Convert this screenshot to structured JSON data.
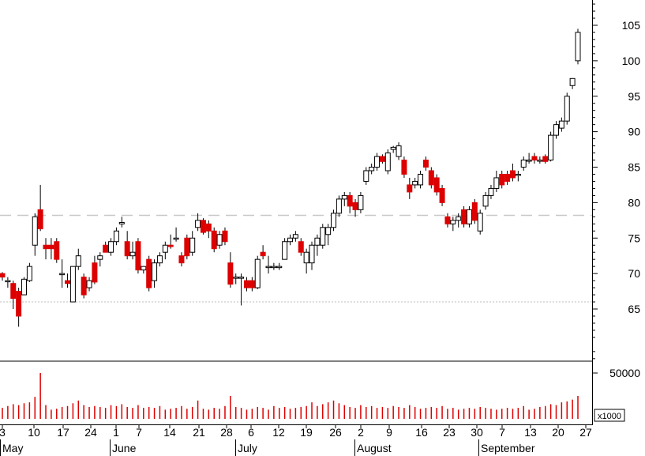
{
  "chart_data": {
    "type": "candlestick",
    "price_ylim": [
      56,
      110
    ],
    "y_ticks": [
      65,
      70,
      75,
      80,
      85,
      90,
      95,
      100,
      105
    ],
    "volume_ticks": [
      50000
    ],
    "volume_ylim": [
      0,
      56000
    ],
    "volume_unit_label": "x1000",
    "resistance_level": 78.2,
    "support_level": 66.0,
    "day_labels": [
      "3",
      "10",
      "17",
      "24",
      "1",
      "7",
      "14",
      "21",
      "28",
      "6",
      "12",
      "19",
      "26",
      "2",
      "9",
      "16",
      "23",
      "30",
      "7",
      "13",
      "20",
      "27"
    ],
    "month_labels": [
      "May",
      "June",
      "July",
      "August",
      "September"
    ],
    "up_color": "#ffffff",
    "down_color": "#dd0000",
    "volume_color": "#dd0000",
    "series": [
      {
        "date": "May 1",
        "open": 70.0,
        "high": 70.2,
        "low": 69.0,
        "close": 69.5
      },
      {
        "date": "May 2",
        "open": 69.0,
        "high": 69.5,
        "low": 68.0,
        "close": 69.0
      },
      {
        "date": "May 3",
        "open": 68.6,
        "high": 69.0,
        "low": 65.0,
        "close": 66.5
      },
      {
        "date": "May 4",
        "open": 67.5,
        "high": 68.0,
        "low": 62.5,
        "close": 64.0
      },
      {
        "date": "May 5",
        "open": 67.0,
        "high": 69.5,
        "low": 67.0,
        "close": 69.2
      },
      {
        "date": "May 8",
        "open": 69.0,
        "high": 71.5,
        "low": 68.8,
        "close": 71.0
      },
      {
        "date": "May 9",
        "open": 74.0,
        "high": 78.5,
        "low": 72.5,
        "close": 78.0
      },
      {
        "date": "May 10",
        "open": 79.0,
        "high": 82.5,
        "low": 76.0,
        "close": 76.3
      },
      {
        "date": "May 11",
        "open": 74.0,
        "high": 75.0,
        "low": 72.0,
        "close": 73.5
      },
      {
        "date": "May 12",
        "open": 74.0,
        "high": 75.0,
        "low": 72.0,
        "close": 73.5
      },
      {
        "date": "May 15",
        "open": 74.5,
        "high": 75.0,
        "low": 71.5,
        "close": 72.0
      },
      {
        "date": "May 16",
        "open": 70.0,
        "high": 72.0,
        "low": 68.0,
        "close": 70.0
      },
      {
        "date": "May 17",
        "open": 69.0,
        "high": 70.0,
        "low": 68.0,
        "close": 68.6
      },
      {
        "date": "May 18",
        "open": 66.0,
        "high": 71.0,
        "low": 66.0,
        "close": 71.0
      },
      {
        "date": "May 19",
        "open": 71.0,
        "high": 73.5,
        "low": 70.5,
        "close": 72.5
      },
      {
        "date": "May 22",
        "open": 69.5,
        "high": 70.0,
        "low": 66.5,
        "close": 67.0
      },
      {
        "date": "May 23",
        "open": 68.0,
        "high": 69.5,
        "low": 67.5,
        "close": 69.0
      },
      {
        "date": "May 24",
        "open": 71.5,
        "high": 72.5,
        "low": 68.5,
        "close": 68.8
      },
      {
        "date": "May 25",
        "open": 72.0,
        "high": 73.0,
        "low": 71.0,
        "close": 72.5
      },
      {
        "date": "May 26",
        "open": 74.0,
        "high": 74.5,
        "low": 73.0,
        "close": 73.0
      },
      {
        "date": "May 29",
        "open": 73.0,
        "high": 75.0,
        "low": 72.5,
        "close": 74.5
      },
      {
        "date": "May 30",
        "open": 74.5,
        "high": 76.5,
        "low": 74.0,
        "close": 76.0
      },
      {
        "date": "May 31",
        "open": 77.0,
        "high": 78.0,
        "low": 76.5,
        "close": 77.2
      },
      {
        "date": "Jun 1",
        "open": 74.5,
        "high": 76.0,
        "low": 72.0,
        "close": 72.5
      },
      {
        "date": "Jun 2",
        "open": 72.5,
        "high": 74.5,
        "low": 72.0,
        "close": 73.0
      },
      {
        "date": "Jun 5",
        "open": 74.5,
        "high": 75.0,
        "low": 70.0,
        "close": 70.5
      },
      {
        "date": "Jun 6",
        "open": 70.5,
        "high": 71.0,
        "low": 70.0,
        "close": 71.0
      },
      {
        "date": "Jun 7",
        "open": 72.0,
        "high": 72.5,
        "low": 67.5,
        "close": 68.0
      },
      {
        "date": "Jun 8",
        "open": 69.0,
        "high": 72.0,
        "low": 68.0,
        "close": 71.5
      },
      {
        "date": "Jun 9",
        "open": 71.5,
        "high": 73.0,
        "low": 71.0,
        "close": 72.5
      },
      {
        "date": "Jun 12",
        "open": 73.0,
        "high": 74.5,
        "low": 72.0,
        "close": 74.0
      },
      {
        "date": "Jun 13",
        "open": 74.0,
        "high": 75.5,
        "low": 73.5,
        "close": 73.8
      },
      {
        "date": "Jun 14",
        "open": 75.0,
        "high": 76.5,
        "low": 74.5,
        "close": 75.0
      },
      {
        "date": "Jun 15",
        "open": 72.5,
        "high": 73.0,
        "low": 71.0,
        "close": 71.5
      },
      {
        "date": "Jun 16",
        "open": 75.0,
        "high": 75.5,
        "low": 72.0,
        "close": 72.5
      },
      {
        "date": "Jun 19",
        "open": 73.0,
        "high": 76.0,
        "low": 72.5,
        "close": 75.0
      },
      {
        "date": "Jun 20",
        "open": 76.5,
        "high": 78.5,
        "low": 76.0,
        "close": 77.5
      },
      {
        "date": "Jun 21",
        "open": 77.5,
        "high": 77.8,
        "low": 75.5,
        "close": 75.8
      },
      {
        "date": "Jun 22",
        "open": 77.0,
        "high": 77.5,
        "low": 75.0,
        "close": 76.0
      },
      {
        "date": "Jun 23",
        "open": 76.0,
        "high": 76.5,
        "low": 73.0,
        "close": 73.5
      },
      {
        "date": "Jun 26",
        "open": 74.0,
        "high": 76.0,
        "low": 73.5,
        "close": 75.5
      },
      {
        "date": "Jun 27",
        "open": 76.0,
        "high": 76.5,
        "low": 74.0,
        "close": 74.5
      },
      {
        "date": "Jun 28",
        "open": 71.5,
        "high": 73.0,
        "low": 68.0,
        "close": 68.5
      },
      {
        "date": "Jun 29",
        "open": 69.5,
        "high": 70.0,
        "low": 68.5,
        "close": 69.5
      },
      {
        "date": "Jun 30",
        "open": 69.5,
        "high": 70.0,
        "low": 65.5,
        "close": 69.5
      },
      {
        "date": "Jul 3",
        "open": 69.0,
        "high": 69.5,
        "low": 67.5,
        "close": 68.0
      },
      {
        "date": "Jul 5",
        "open": 69.0,
        "high": 69.5,
        "low": 67.5,
        "close": 68.0
      },
      {
        "date": "Jul 6",
        "open": 68.0,
        "high": 72.5,
        "low": 67.8,
        "close": 72.0
      },
      {
        "date": "Jul 7",
        "open": 73.0,
        "high": 74.0,
        "low": 72.0,
        "close": 72.5
      },
      {
        "date": "Jul 10",
        "open": 71.0,
        "high": 72.5,
        "low": 70.0,
        "close": 71.0
      },
      {
        "date": "Jul 11",
        "open": 71.0,
        "high": 71.5,
        "low": 70.5,
        "close": 71.0
      },
      {
        "date": "Jul 12",
        "open": 71.0,
        "high": 71.5,
        "low": 70.5,
        "close": 71.0
      },
      {
        "date": "Jul 13",
        "open": 72.0,
        "high": 75.0,
        "low": 72.0,
        "close": 74.5
      },
      {
        "date": "Jul 14",
        "open": 74.5,
        "high": 75.5,
        "low": 74.0,
        "close": 75.0
      },
      {
        "date": "Jul 17",
        "open": 75.0,
        "high": 76.0,
        "low": 74.5,
        "close": 75.5
      },
      {
        "date": "Jul 18",
        "open": 74.5,
        "high": 75.0,
        "low": 72.5,
        "close": 73.0
      },
      {
        "date": "Jul 19",
        "open": 71.5,
        "high": 73.5,
        "low": 70.0,
        "close": 73.0
      },
      {
        "date": "Jul 20",
        "open": 71.5,
        "high": 74.5,
        "low": 70.5,
        "close": 74.0
      },
      {
        "date": "Jul 21",
        "open": 74.0,
        "high": 75.5,
        "low": 72.5,
        "close": 75.0
      },
      {
        "date": "Jul 24",
        "open": 74.0,
        "high": 77.0,
        "low": 73.5,
        "close": 76.5
      },
      {
        "date": "Jul 25",
        "open": 75.5,
        "high": 77.0,
        "low": 74.0,
        "close": 76.5
      },
      {
        "date": "Jul 26",
        "open": 76.5,
        "high": 79.0,
        "low": 76.0,
        "close": 78.5
      },
      {
        "date": "Jul 27",
        "open": 78.5,
        "high": 81.0,
        "low": 78.0,
        "close": 80.5
      },
      {
        "date": "Jul 28",
        "open": 80.5,
        "high": 81.5,
        "low": 79.5,
        "close": 81.0
      },
      {
        "date": "Jul 31",
        "open": 81.0,
        "high": 81.5,
        "low": 78.5,
        "close": 79.5
      },
      {
        "date": "Aug 1",
        "open": 80.0,
        "high": 80.5,
        "low": 78.0,
        "close": 79.0
      },
      {
        "date": "Aug 2",
        "open": 79.0,
        "high": 81.5,
        "low": 78.5,
        "close": 81.0
      },
      {
        "date": "Aug 3",
        "open": 83.0,
        "high": 85.0,
        "low": 82.5,
        "close": 84.5
      },
      {
        "date": "Aug 4",
        "open": 84.5,
        "high": 85.5,
        "low": 84.0,
        "close": 85.0
      },
      {
        "date": "Aug 7",
        "open": 85.0,
        "high": 87.0,
        "low": 84.5,
        "close": 86.5
      },
      {
        "date": "Aug 8",
        "open": 86.5,
        "high": 86.8,
        "low": 85.5,
        "close": 85.8
      },
      {
        "date": "Aug 9",
        "open": 84.5,
        "high": 87.5,
        "low": 84.0,
        "close": 87.0
      },
      {
        "date": "Aug 10",
        "open": 87.5,
        "high": 88.0,
        "low": 87.0,
        "close": 87.8
      },
      {
        "date": "Aug 11",
        "open": 86.5,
        "high": 88.5,
        "low": 86.0,
        "close": 88.0
      },
      {
        "date": "Aug 14",
        "open": 86.0,
        "high": 86.5,
        "low": 83.5,
        "close": 84.0
      },
      {
        "date": "Aug 15",
        "open": 82.5,
        "high": 83.5,
        "low": 80.5,
        "close": 81.5
      },
      {
        "date": "Aug 16",
        "open": 82.5,
        "high": 83.5,
        "low": 82.0,
        "close": 83.0
      },
      {
        "date": "Aug 17",
        "open": 82.5,
        "high": 84.5,
        "low": 82.0,
        "close": 84.0
      },
      {
        "date": "Aug 18",
        "open": 86.0,
        "high": 86.5,
        "low": 84.5,
        "close": 85.0
      },
      {
        "date": "Aug 21",
        "open": 84.5,
        "high": 85.0,
        "low": 82.0,
        "close": 82.5
      },
      {
        "date": "Aug 22",
        "open": 83.5,
        "high": 84.0,
        "low": 81.0,
        "close": 81.5
      },
      {
        "date": "Aug 23",
        "open": 82.0,
        "high": 82.5,
        "low": 79.5,
        "close": 80.0
      },
      {
        "date": "Aug 24",
        "open": 78.0,
        "high": 78.5,
        "low": 76.5,
        "close": 77.0
      },
      {
        "date": "Aug 25",
        "open": 77.0,
        "high": 78.0,
        "low": 76.0,
        "close": 77.5
      },
      {
        "date": "Aug 28",
        "open": 77.5,
        "high": 78.5,
        "low": 76.5,
        "close": 78.0
      },
      {
        "date": "Aug 29",
        "open": 79.0,
        "high": 79.5,
        "low": 76.5,
        "close": 77.0
      },
      {
        "date": "Aug 30",
        "open": 77.0,
        "high": 79.5,
        "low": 76.5,
        "close": 79.0
      },
      {
        "date": "Aug 31",
        "open": 80.0,
        "high": 80.5,
        "low": 77.0,
        "close": 77.5
      },
      {
        "date": "Sep 1",
        "open": 76.0,
        "high": 79.0,
        "low": 75.5,
        "close": 78.5
      },
      {
        "date": "Sep 5",
        "open": 79.5,
        "high": 81.5,
        "low": 79.0,
        "close": 81.0
      },
      {
        "date": "Sep 6",
        "open": 81.0,
        "high": 82.5,
        "low": 80.5,
        "close": 82.0
      },
      {
        "date": "Sep 7",
        "open": 82.0,
        "high": 84.5,
        "low": 81.5,
        "close": 83.5
      },
      {
        "date": "Sep 8",
        "open": 84.0,
        "high": 84.5,
        "low": 82.0,
        "close": 82.5
      },
      {
        "date": "Sep 11",
        "open": 84.0,
        "high": 84.5,
        "low": 82.5,
        "close": 83.0
      },
      {
        "date": "Sep 12",
        "open": 84.5,
        "high": 85.5,
        "low": 83.0,
        "close": 83.5
      },
      {
        "date": "Sep 13",
        "open": 84.0,
        "high": 84.5,
        "low": 83.0,
        "close": 84.0
      },
      {
        "date": "Sep 14",
        "open": 85.0,
        "high": 86.5,
        "low": 84.5,
        "close": 86.0
      },
      {
        "date": "Sep 15",
        "open": 86.0,
        "high": 87.0,
        "low": 85.5,
        "close": 86.0
      },
      {
        "date": "Sep 18",
        "open": 86.5,
        "high": 87.0,
        "low": 85.5,
        "close": 86.0
      },
      {
        "date": "Sep 19",
        "open": 86.0,
        "high": 86.5,
        "low": 85.5,
        "close": 86.0
      },
      {
        "date": "Sep 20",
        "open": 86.5,
        "high": 86.8,
        "low": 85.5,
        "close": 85.8
      },
      {
        "date": "Sep 21",
        "open": 86.0,
        "high": 90.0,
        "low": 85.8,
        "close": 89.5
      },
      {
        "date": "Sep 22",
        "open": 89.5,
        "high": 91.5,
        "low": 89.0,
        "close": 91.0
      },
      {
        "date": "Sep 25",
        "open": 90.5,
        "high": 92.0,
        "low": 90.0,
        "close": 91.5
      },
      {
        "date": "Sep 26",
        "open": 91.5,
        "high": 95.5,
        "low": 91.0,
        "close": 95.0
      },
      {
        "date": "Sep 27",
        "open": 96.5,
        "high": 97.5,
        "low": 96.0,
        "close": 97.5
      },
      {
        "date": "Sep 28",
        "open": 100.0,
        "high": 104.5,
        "low": 99.5,
        "close": 104.0
      }
    ],
    "volumes": [
      12000,
      14000,
      16000,
      15000,
      17000,
      18000,
      24000,
      50000,
      15000,
      10000,
      11000,
      13000,
      14000,
      17000,
      20000,
      15000,
      13000,
      14000,
      13000,
      12000,
      15000,
      14000,
      16000,
      13000,
      12000,
      15000,
      12000,
      13000,
      12000,
      14000,
      10000,
      11000,
      12000,
      14000,
      11000,
      13000,
      20000,
      11000,
      10000,
      12000,
      11000,
      14000,
      25000,
      13000,
      12000,
      10000,
      11000,
      13000,
      12000,
      10000,
      14000,
      12000,
      13000,
      11000,
      12000,
      13000,
      14000,
      18000,
      14000,
      16000,
      18000,
      20000,
      17000,
      15000,
      13000,
      12000,
      15000,
      13000,
      14000,
      12000,
      13000,
      12000,
      14000,
      13000,
      12000,
      15000,
      13000,
      11000,
      12000,
      13000,
      12000,
      14000,
      11000,
      12000,
      10000,
      11000,
      12000,
      11000,
      13000,
      12000,
      11000,
      10000,
      11000,
      12000,
      11000,
      12000,
      14000,
      10000,
      11000,
      13000,
      14000,
      16000,
      15000,
      18000,
      19000,
      21000,
      25000
    ]
  }
}
